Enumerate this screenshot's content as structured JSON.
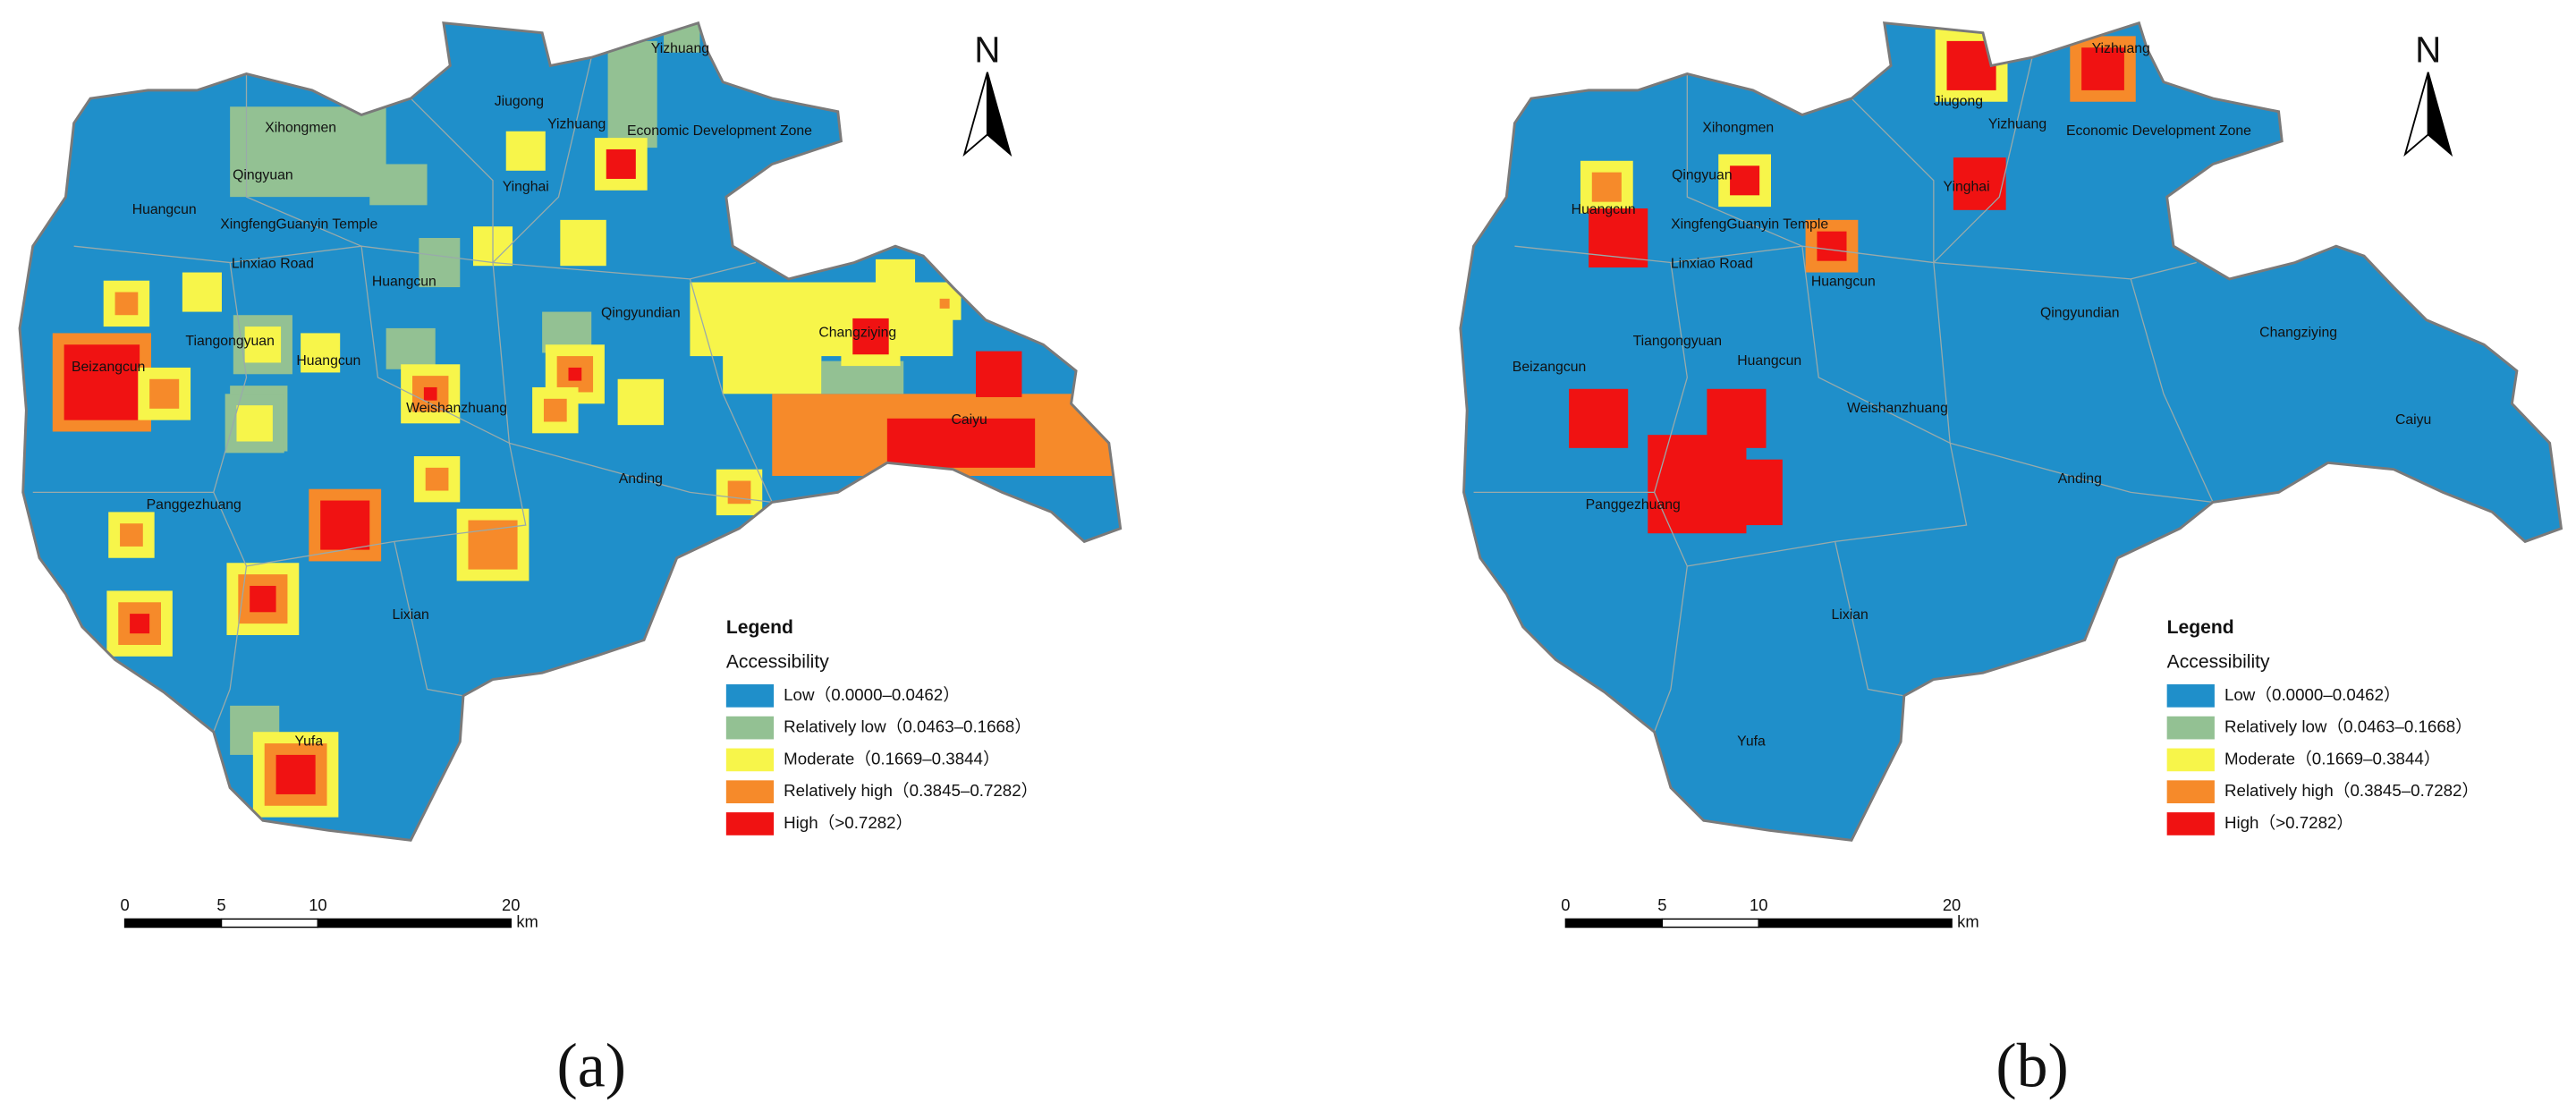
{
  "panels": [
    {
      "caption": "(a)",
      "north": "N",
      "place_labels": [
        "Yizhuang",
        "Jiugong",
        "Yizhuang",
        "Xihongmen",
        "Economic Development Zone",
        "Qingyuan",
        "Yinghai",
        "Huangcun",
        "XingfengGuanyin Temple",
        "Linxiao Road",
        "Huangcun",
        "Qingyundian",
        "Changziying",
        "Tiangongyuan",
        "Huangcun",
        "Beizangcun",
        "Weishanzhuang",
        "Caiyu",
        "Anding",
        "Panggezhuang",
        "Lixian",
        "Yufa"
      ],
      "legend": {
        "title": "Legend",
        "subtitle": "Accessibility",
        "items": [
          {
            "label": "Low（0.0000–0.0462）",
            "color": "#1f8fca"
          },
          {
            "label": "Relatively low（0.0463–0.1668）",
            "color": "#93c193"
          },
          {
            "label": "Moderate（0.1669–0.3844）",
            "color": "#f7f54a"
          },
          {
            "label": "Relatively high（0.3845–0.7282）",
            "color": "#f68a2a"
          },
          {
            "label": "High（>0.7282）",
            "color": "#f01212"
          }
        ]
      },
      "scale_bar": {
        "ticks": [
          0,
          5,
          10,
          20
        ],
        "unit": "km"
      }
    },
    {
      "caption": "(b)",
      "north": "N",
      "place_labels": [
        "Jiugong",
        "Yizhuang",
        "Yizhuang",
        "Xihongmen",
        "Economic Development Zone",
        "Qingyuan",
        "Huangcun",
        "XingfengGuanyin Temple",
        "Yinghai",
        "Linxiao Road",
        "Huangcun",
        "Qingyundian",
        "Changziying",
        "Beizangcun",
        "Tiangongyuan",
        "Huangcun",
        "Weishanzhuang",
        "Caiyu",
        "Anding",
        "Panggezhuang",
        "Lixian",
        "Yufa"
      ],
      "legend": {
        "title": "Legend",
        "subtitle": "Accessibility",
        "items": [
          {
            "label": "Low（0.0000–0.0462）",
            "color": "#1f8fca"
          },
          {
            "label": "Relatively low（0.0463–0.1668）",
            "color": "#93c193"
          },
          {
            "label": "Moderate（0.1669–0.3844）",
            "color": "#f7f54a"
          },
          {
            "label": "Relatively high（0.3845–0.7282）",
            "color": "#f68a2a"
          },
          {
            "label": "High（>0.7282）",
            "color": "#f01212"
          }
        ]
      },
      "scale_bar": {
        "ticks": [
          0,
          5,
          10,
          20
        ],
        "unit": "km"
      }
    }
  ]
}
